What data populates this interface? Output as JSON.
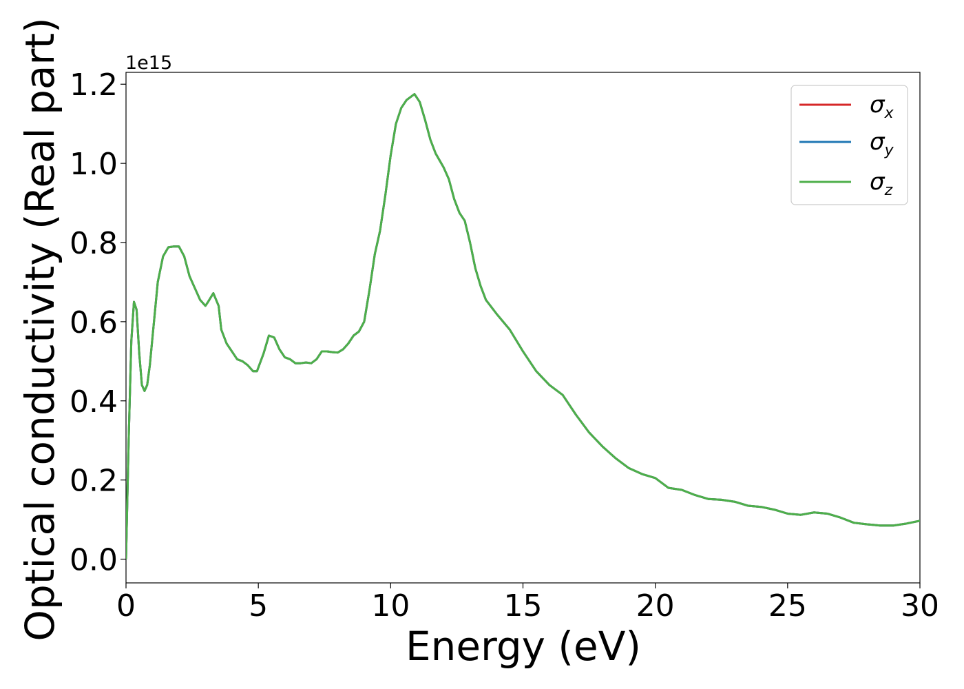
{
  "chart_data": {
    "type": "line",
    "xlabel": "Energy (eV)",
    "ylabel": "Optical conductivity (Real part)",
    "offset_text": "1e15",
    "xlim": [
      0,
      30
    ],
    "ylim": [
      -0.06,
      1.23
    ],
    "y_scale_factor": 1000000000000000.0,
    "x_ticks": [
      0,
      5,
      10,
      15,
      20,
      25,
      30
    ],
    "x_tick_labels": [
      "0",
      "5",
      "10",
      "15",
      "20",
      "25",
      "30"
    ],
    "y_ticks": [
      0.0,
      0.2,
      0.4,
      0.6,
      0.8,
      1.0,
      1.2
    ],
    "y_tick_labels": [
      "0.0",
      "0.2",
      "0.4",
      "0.6",
      "0.8",
      "1.0",
      "1.2"
    ],
    "grid": false,
    "legend_position": "top-right",
    "series": [
      {
        "name": "σx",
        "symbol": "σ",
        "subscript": "x",
        "color": "#d62728"
      },
      {
        "name": "σy",
        "symbol": "σ",
        "subscript": "y",
        "color": "#1f77b4"
      },
      {
        "name": "σz",
        "symbol": "σ",
        "subscript": "z",
        "color": "#4daf4a"
      }
    ],
    "x": [
      0,
      0.1,
      0.2,
      0.3,
      0.4,
      0.5,
      0.6,
      0.7,
      0.8,
      0.9,
      1.0,
      1.2,
      1.4,
      1.6,
      1.8,
      2.0,
      2.2,
      2.4,
      2.6,
      2.8,
      3.0,
      3.1,
      3.3,
      3.5,
      3.6,
      3.8,
      4.0,
      4.2,
      4.4,
      4.6,
      4.8,
      4.95,
      5.2,
      5.4,
      5.6,
      5.8,
      6.0,
      6.2,
      6.4,
      6.6,
      6.8,
      7.0,
      7.2,
      7.4,
      7.6,
      7.8,
      8.0,
      8.2,
      8.4,
      8.6,
      8.8,
      9.0,
      9.2,
      9.4,
      9.6,
      9.8,
      10.0,
      10.2,
      10.4,
      10.6,
      10.9,
      11.1,
      11.3,
      11.5,
      11.7,
      12.0,
      12.2,
      12.4,
      12.6,
      12.8,
      13.0,
      13.2,
      13.4,
      13.6,
      14.0,
      14.5,
      15.0,
      15.5,
      16.0,
      16.5,
      17.0,
      17.5,
      18.0,
      18.5,
      19.0,
      19.5,
      20.0,
      20.5,
      21.0,
      21.5,
      22.0,
      22.5,
      23.0,
      23.5,
      24.0,
      24.5,
      25.0,
      25.5,
      26.0,
      26.5,
      27.0,
      27.5,
      28.0,
      28.5,
      29.0,
      29.5,
      30.0
    ],
    "y": [
      0.0,
      0.3,
      0.55,
      0.65,
      0.63,
      0.52,
      0.44,
      0.425,
      0.44,
      0.49,
      0.56,
      0.7,
      0.765,
      0.788,
      0.79,
      0.79,
      0.765,
      0.715,
      0.685,
      0.655,
      0.64,
      0.65,
      0.672,
      0.64,
      0.58,
      0.545,
      0.525,
      0.505,
      0.5,
      0.49,
      0.475,
      0.475,
      0.52,
      0.565,
      0.56,
      0.53,
      0.51,
      0.505,
      0.495,
      0.495,
      0.497,
      0.495,
      0.505,
      0.525,
      0.525,
      0.523,
      0.522,
      0.53,
      0.545,
      0.565,
      0.575,
      0.6,
      0.68,
      0.77,
      0.83,
      0.92,
      1.02,
      1.1,
      1.14,
      1.16,
      1.175,
      1.155,
      1.11,
      1.06,
      1.025,
      0.99,
      0.96,
      0.91,
      0.875,
      0.855,
      0.8,
      0.735,
      0.69,
      0.655,
      0.62,
      0.58,
      0.525,
      0.475,
      0.44,
      0.415,
      0.365,
      0.32,
      0.285,
      0.255,
      0.23,
      0.215,
      0.205,
      0.18,
      0.175,
      0.162,
      0.152,
      0.15,
      0.145,
      0.135,
      0.132,
      0.125,
      0.115,
      0.112,
      0.118,
      0.115,
      0.105,
      0.092,
      0.088,
      0.085,
      0.085,
      0.09,
      0.097
    ]
  }
}
